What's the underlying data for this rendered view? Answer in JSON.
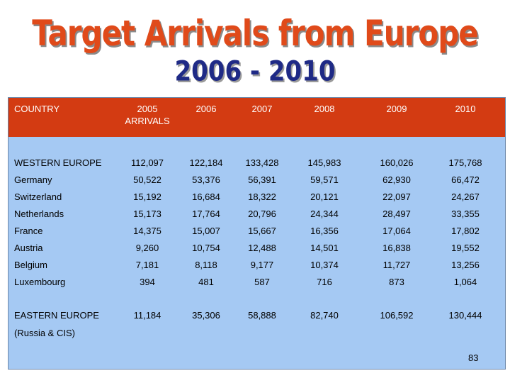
{
  "title": {
    "main": "Target Arrivals from Europe",
    "sub": "2006 - 2010"
  },
  "table": {
    "headers": [
      "COUNTRY",
      "2005 ARRIVALS",
      "2006",
      "2007",
      "2008",
      "2009",
      "2010"
    ],
    "header_2005_line1": "2005",
    "header_2005_line2": "ARRIVALS",
    "rows": [
      {
        "country": "WESTERN EUROPE",
        "values": [
          "112,097",
          "122,184",
          "133,428",
          "145,983",
          "160,026",
          "175,768"
        ]
      },
      {
        "country": "Germany",
        "values": [
          "50,522",
          "53,376",
          "56,391",
          "59,571",
          "62,930",
          "66,472"
        ]
      },
      {
        "country": "Switzerland",
        "values": [
          "15,192",
          "16,684",
          "18,322",
          "20,121",
          "22,097",
          "24,267"
        ]
      },
      {
        "country": "Netherlands",
        "values": [
          "15,173",
          "17,764",
          "20,796",
          "24,344",
          "28,497",
          "33,355"
        ]
      },
      {
        "country": "France",
        "values": [
          "14,375",
          "15,007",
          "15,667",
          "16,356",
          "17,064",
          "17,802"
        ]
      },
      {
        "country": "Austria",
        "values": [
          "9,260",
          "10,754",
          "12,488",
          "14,501",
          "16,838",
          "19,552"
        ]
      },
      {
        "country": "Belgium",
        "values": [
          "7,181",
          "8,118",
          "9,177",
          "10,374",
          "11,727",
          "13,256"
        ]
      },
      {
        "country": "Luxembourg",
        "values": [
          "394",
          "481",
          "587",
          "716",
          "873",
          "1,064"
        ]
      },
      {
        "country": "EASTERN EUROPE",
        "values": [
          "11,184",
          "35,306",
          "58,888",
          "82,740",
          "106,592",
          "130,444"
        ]
      }
    ],
    "eastern_note": "(Russia & CIS)"
  },
  "page_number": "83",
  "colors": {
    "title_main": "#e04a1a",
    "title_sub": "#1f2a86",
    "header_band": "#d33b12",
    "table_body": "#a5c9f3"
  }
}
